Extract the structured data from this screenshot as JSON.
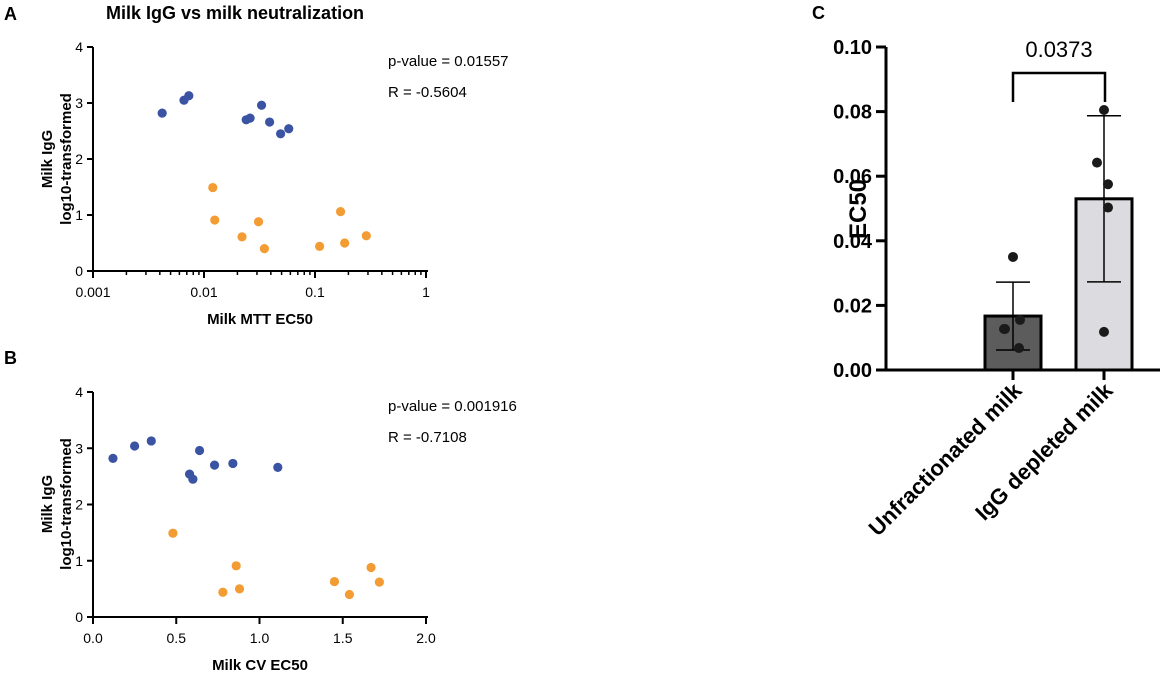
{
  "figure_title": "Milk IgG vs milk neutralization",
  "panel_labels": [
    "A",
    "B",
    "C"
  ],
  "colors": {
    "blue": "#3a53a3",
    "orange": "#f39c33",
    "dark_bar": "#5c5c5c",
    "light_bar": "#dcdce0"
  },
  "chart_data": [
    {
      "panel": "A",
      "type": "scatter",
      "x_scale": "log",
      "xlim": [
        0.001,
        1
      ],
      "ylim": [
        0,
        4
      ],
      "x_ticks": [
        0.001,
        0.01,
        0.1,
        1
      ],
      "x_tick_labels": [
        "0.001",
        "0.01",
        "0.1",
        "1"
      ],
      "y_ticks": [
        0,
        1,
        2,
        3,
        4
      ],
      "y_tick_labels": [
        "0",
        "1",
        "2",
        "3",
        "4"
      ],
      "xlabel": "Milk MTT EC50",
      "ylabel_line1": "Milk IgG",
      "ylabel_line2": "log10-transformed",
      "annotation_pvalue": "p-value = 0.01557",
      "annotation_r": "R = -0.5604",
      "series": [
        {
          "name": "blue",
          "color": "#3a53a3",
          "x": [
            0.0042,
            0.0066,
            0.0073,
            0.024,
            0.026,
            0.033,
            0.039,
            0.049,
            0.058
          ],
          "y": [
            2.82,
            3.05,
            3.13,
            2.7,
            2.73,
            2.96,
            2.66,
            2.45,
            2.54
          ]
        },
        {
          "name": "orange",
          "color": "#f39c33",
          "x": [
            0.012,
            0.0125,
            0.022,
            0.031,
            0.035,
            0.11,
            0.17,
            0.185,
            0.29
          ],
          "y": [
            1.49,
            0.91,
            0.61,
            0.88,
            0.4,
            0.44,
            1.06,
            0.5,
            0.63
          ]
        }
      ]
    },
    {
      "panel": "B",
      "type": "scatter",
      "x_scale": "linear",
      "xlim": [
        0,
        2
      ],
      "ylim": [
        0,
        4
      ],
      "x_ticks": [
        0,
        0.5,
        1,
        1.5,
        2
      ],
      "x_tick_labels": [
        "0.0",
        "0.5",
        "1.0",
        "1.5",
        "2.0"
      ],
      "y_ticks": [
        0,
        1,
        2,
        3,
        4
      ],
      "y_tick_labels": [
        "0",
        "1",
        "2",
        "3",
        "4"
      ],
      "xlabel": "Milk CV EC50",
      "ylabel_line1": "Milk IgG",
      "ylabel_line2": "log10-transformed",
      "annotation_pvalue": "p-value = 0.001916",
      "annotation_r": "R = -0.7108",
      "series": [
        {
          "name": "blue",
          "color": "#3a53a3",
          "x": [
            0.12,
            0.25,
            0.35,
            0.58,
            0.6,
            0.64,
            0.73,
            0.84,
            1.11
          ],
          "y": [
            2.82,
            3.04,
            3.13,
            2.54,
            2.45,
            2.96,
            2.7,
            2.73,
            2.66
          ]
        },
        {
          "name": "orange",
          "color": "#f39c33",
          "x": [
            0.48,
            0.78,
            0.86,
            0.88,
            1.45,
            1.54,
            1.67,
            1.72
          ],
          "y": [
            1.49,
            0.44,
            0.91,
            0.5,
            0.63,
            0.4,
            0.88,
            0.62
          ]
        }
      ]
    },
    {
      "panel": "C",
      "type": "bar",
      "categories": [
        "Unfractionated milk",
        "IgG depleted milk"
      ],
      "values": [
        0.0167,
        0.053
      ],
      "sd": [
        0.0105,
        0.0257
      ],
      "bar_colors": [
        "#5c5c5c",
        "#dcdce0"
      ],
      "points": [
        [
          0.035,
          0.0127,
          0.0155,
          0.0127,
          0.0068
        ],
        [
          0.0805,
          0.0642,
          0.0575,
          0.0503,
          0.0118
        ]
      ],
      "ylim": [
        0,
        0.1
      ],
      "y_ticks": [
        0,
        0.02,
        0.04,
        0.06,
        0.08,
        0.1
      ],
      "y_tick_labels": [
        "0.00",
        "0.02",
        "0.04",
        "0.06",
        "0.08",
        "0.10"
      ],
      "ylabel": "EC50",
      "xlabel": "",
      "comparison_p": "0.0373"
    }
  ]
}
